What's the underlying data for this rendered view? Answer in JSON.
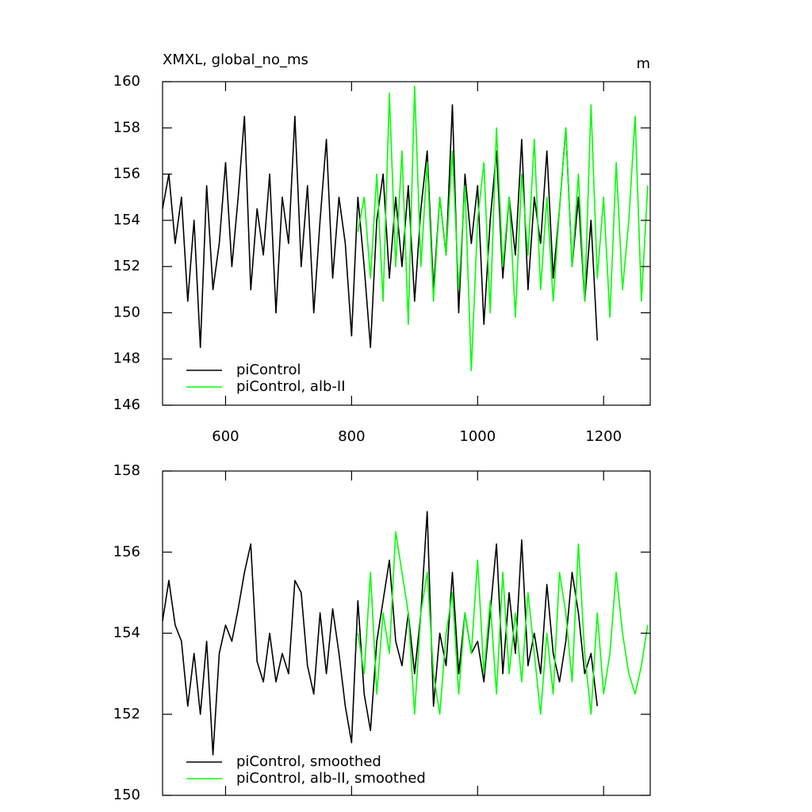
{
  "chart_data": [
    {
      "type": "line",
      "title": "XMXL, global_no_ms",
      "units": "m",
      "xlim": [
        500,
        1274
      ],
      "xticks": [
        600,
        800,
        1000,
        1200
      ],
      "xtick_labels": true,
      "ylim": [
        146,
        160
      ],
      "yticks": [
        146,
        148,
        150,
        152,
        154,
        156,
        158,
        160
      ],
      "series": [
        {
          "name": "piControl",
          "color": "#000000",
          "x": [
            500,
            510,
            520,
            530,
            540,
            550,
            560,
            570,
            580,
            590,
            600,
            610,
            620,
            630,
            640,
            650,
            660,
            670,
            680,
            690,
            700,
            710,
            720,
            730,
            740,
            750,
            760,
            770,
            780,
            790,
            800,
            810,
            820,
            830,
            840,
            850,
            860,
            870,
            880,
            890,
            900,
            910,
            920,
            930,
            940,
            950,
            960,
            970,
            980,
            990,
            1000,
            1010,
            1020,
            1030,
            1040,
            1050,
            1060,
            1070,
            1080,
            1090,
            1100,
            1110,
            1120,
            1130,
            1140,
            1150,
            1160,
            1170,
            1180,
            1190
          ],
          "values": [
            154.5,
            156,
            153,
            155,
            150.5,
            154,
            148.5,
            155.5,
            151,
            153,
            156.5,
            152,
            155,
            158.5,
            151,
            154.5,
            152.5,
            156,
            150,
            155,
            153,
            158.5,
            152,
            155.5,
            150,
            154,
            157.5,
            151.5,
            155,
            153,
            149,
            155,
            152,
            148.5,
            154,
            156,
            151.5,
            155,
            152,
            155.5,
            150.5,
            154.5,
            157,
            151,
            155,
            152.5,
            159,
            150,
            156,
            153,
            155.5,
            149.5,
            154,
            157,
            151.5,
            155,
            152.5,
            157.5,
            151,
            155,
            153,
            157,
            151.5,
            154.5,
            158,
            152,
            155,
            150.5,
            154,
            148.8
          ]
        },
        {
          "name": "piControl, alb-II",
          "color": "#00ff00",
          "x": [
            810,
            820,
            830,
            840,
            850,
            860,
            870,
            880,
            890,
            900,
            910,
            920,
            930,
            940,
            950,
            960,
            970,
            980,
            990,
            1000,
            1010,
            1020,
            1030,
            1040,
            1050,
            1060,
            1070,
            1080,
            1090,
            1100,
            1110,
            1120,
            1130,
            1140,
            1150,
            1160,
            1170,
            1180,
            1190,
            1200,
            1210,
            1220,
            1230,
            1240,
            1250,
            1260,
            1270
          ],
          "values": [
            153.5,
            155,
            151.5,
            156,
            150.5,
            159.5,
            152,
            157,
            149.5,
            159.8,
            152,
            156.5,
            150.5,
            155,
            152.5,
            157,
            151,
            155.5,
            147.5,
            154,
            156.5,
            150,
            158,
            152,
            155,
            149.8,
            156,
            152.5,
            157.5,
            151,
            155,
            150.5,
            154.5,
            158,
            152,
            156,
            150.5,
            159,
            151.5,
            155,
            149.8,
            156.5,
            151,
            154,
            158.5,
            150.5,
            155.5
          ]
        }
      ]
    },
    {
      "type": "line",
      "xlim": [
        500,
        1274
      ],
      "xticks": [
        600,
        800,
        1000,
        1200
      ],
      "xtick_labels": false,
      "ylim": [
        150,
        158
      ],
      "yticks": [
        150,
        152,
        154,
        156,
        158
      ],
      "series": [
        {
          "name": "piControl, smoothed",
          "color": "#000000",
          "x": [
            500,
            510,
            520,
            530,
            540,
            550,
            560,
            570,
            580,
            590,
            600,
            610,
            620,
            630,
            640,
            650,
            660,
            670,
            680,
            690,
            700,
            710,
            720,
            730,
            740,
            750,
            760,
            770,
            780,
            790,
            800,
            810,
            820,
            830,
            840,
            850,
            860,
            870,
            880,
            890,
            900,
            910,
            920,
            930,
            940,
            950,
            960,
            970,
            980,
            990,
            1000,
            1010,
            1020,
            1030,
            1040,
            1050,
            1060,
            1070,
            1080,
            1090,
            1100,
            1110,
            1120,
            1130,
            1140,
            1150,
            1160,
            1170,
            1180,
            1190
          ],
          "values": [
            154.3,
            155.3,
            154.2,
            153.8,
            152.2,
            153.5,
            152.0,
            153.8,
            151.0,
            153.5,
            154.2,
            153.8,
            154.6,
            155.5,
            156.2,
            153.3,
            152.8,
            154.0,
            152.8,
            153.5,
            153.0,
            155.3,
            155.0,
            153.2,
            152.5,
            154.5,
            153.0,
            154.6,
            153.5,
            152.2,
            151.3,
            154.8,
            152.5,
            151.6,
            153.8,
            154.8,
            155.8,
            153.8,
            153.2,
            154.5,
            153.0,
            154.5,
            157.0,
            152.2,
            154.0,
            153.2,
            155.5,
            153.0,
            154.5,
            153.5,
            153.8,
            152.8,
            154.5,
            156.2,
            153.0,
            155.0,
            153.5,
            156.3,
            153.2,
            154.0,
            153.0,
            155.2,
            153.5,
            152.8,
            153.8,
            155.5,
            154.5,
            153.0,
            153.5,
            152.2
          ]
        },
        {
          "name": "piControl, alb-II, smoothed",
          "color": "#00ff00",
          "x": [
            810,
            820,
            830,
            840,
            850,
            860,
            870,
            880,
            890,
            900,
            910,
            920,
            930,
            940,
            950,
            960,
            970,
            980,
            990,
            1000,
            1010,
            1020,
            1030,
            1040,
            1050,
            1060,
            1070,
            1080,
            1090,
            1100,
            1110,
            1120,
            1130,
            1140,
            1150,
            1160,
            1170,
            1180,
            1190,
            1200,
            1210,
            1220,
            1230,
            1240,
            1250,
            1260,
            1270
          ],
          "values": [
            154.0,
            153.0,
            155.5,
            152.5,
            154.5,
            153.5,
            156.5,
            155.5,
            154.5,
            152.0,
            154.5,
            155.5,
            153.0,
            152.0,
            154.0,
            155.0,
            152.5,
            154.5,
            153.5,
            155.8,
            153.0,
            154.8,
            152.5,
            155.5,
            153.0,
            154.5,
            152.8,
            155.0,
            153.5,
            152.0,
            154.0,
            152.5,
            155.5,
            154.5,
            152.8,
            156.2,
            153.5,
            152.0,
            154.5,
            152.5,
            153.5,
            155.5,
            154.0,
            153.0,
            152.5,
            153.2,
            154.2
          ]
        }
      ]
    }
  ]
}
